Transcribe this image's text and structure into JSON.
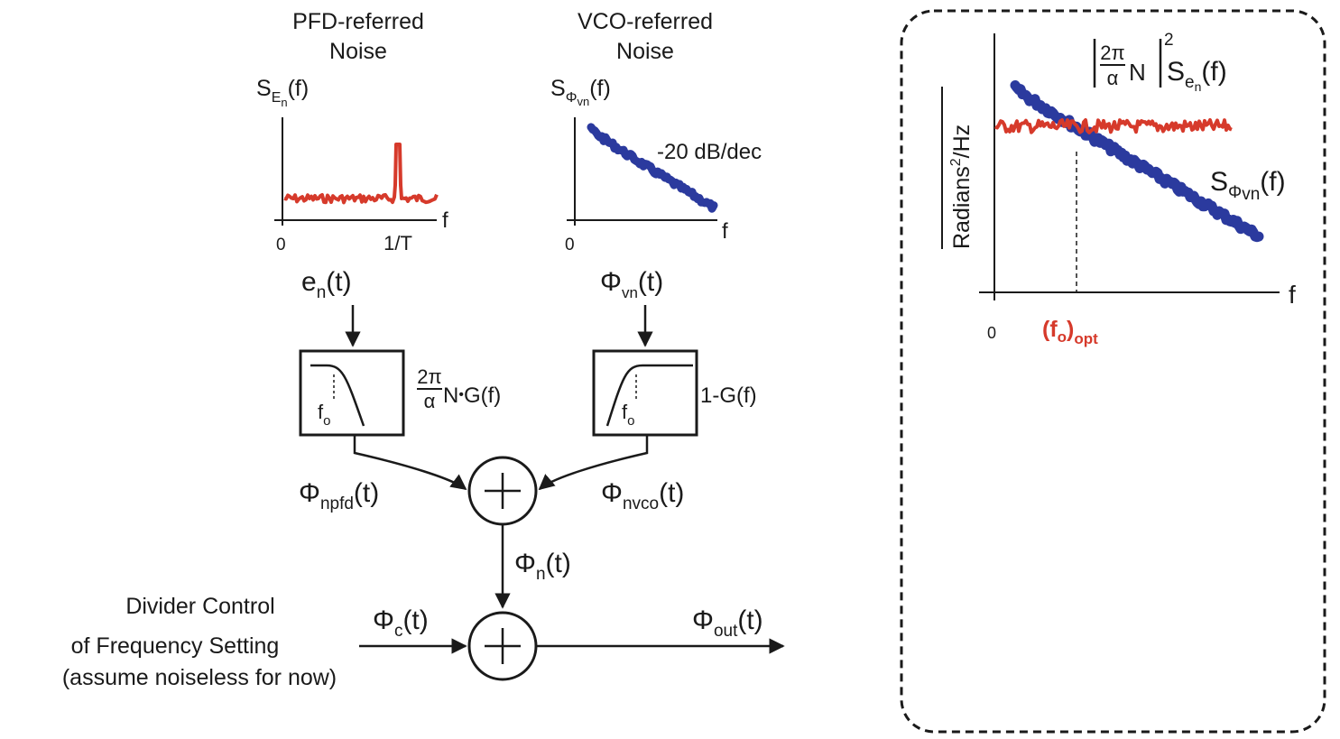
{
  "pfd": {
    "title_line1": "PFD-referred",
    "title_line2": "Noise",
    "psd_base": "S",
    "psd_sub": "E",
    "psd_subsub": "n",
    "psd_arg": "(f)",
    "x_axis_label": "f",
    "origin_label": "0",
    "spur_label": "1/T",
    "signal_base": "e",
    "signal_sub": "n",
    "signal_arg": "(t)",
    "filter_coef_num": "2π",
    "filter_coef_den": "α",
    "filter_coef_rest": "N",
    "filter_coef_dot": "•",
    "filter_coef_tail": "G(f)",
    "filter_corner_base": "f",
    "filter_corner_sub": "o",
    "output_base": "Φ",
    "output_sub": "npfd",
    "output_arg": "(t)"
  },
  "vco": {
    "title_line1": "VCO-referred",
    "title_line2": "Noise",
    "psd_base": "S",
    "psd_sub": "Φ",
    "psd_subsub": "vn",
    "psd_arg": "(f)",
    "slope_label": "-20 dB/dec",
    "x_axis_label": "f",
    "origin_label": "0",
    "signal_base": "Φ",
    "signal_sub": "vn",
    "signal_arg": "(t)",
    "filter_label": "1-G(f)",
    "filter_corner_base": "f",
    "filter_corner_sub": "o",
    "output_base": "Φ",
    "output_sub": "nvco",
    "output_arg": "(t)"
  },
  "sum": {
    "noise_base": "Φ",
    "noise_sub": "n",
    "noise_arg": "(t)",
    "control_base": "Φ",
    "control_sub": "c",
    "control_arg": "(t)",
    "out_base": "Φ",
    "out_sub": "out",
    "out_arg": "(t)",
    "divider_line1": "Divider Control",
    "divider_line2": "of Frequency Setting",
    "divider_line3": "(assume noiseless for now)"
  },
  "panel": {
    "y_label": "Radians",
    "y_label_exp": "2",
    "y_label_tail": "/Hz",
    "x_label": "f",
    "origin_label": "0",
    "opt_base": "(f",
    "opt_sub_o": "o",
    "opt_close": ")",
    "opt_sub": "opt",
    "pfd_curve_num": "2π",
    "pfd_curve_den": "α",
    "pfd_curve_mid": "N",
    "pfd_curve_exp": "2",
    "pfd_curve_psd_base": "S",
    "pfd_curve_psd_sub": "e",
    "pfd_curve_psd_subsub": "n",
    "pfd_curve_psd_arg": "(f)",
    "vco_curve_base": "S",
    "vco_curve_sub": "Φ",
    "vco_curve_subsub": "vn",
    "vco_curve_arg": "(f)"
  },
  "colors": {
    "pfd_noise": "#d63a2b",
    "vco_noise": "#2b3a9e",
    "ink": "#1a1a1a",
    "opt_label": "#d63a2b"
  }
}
